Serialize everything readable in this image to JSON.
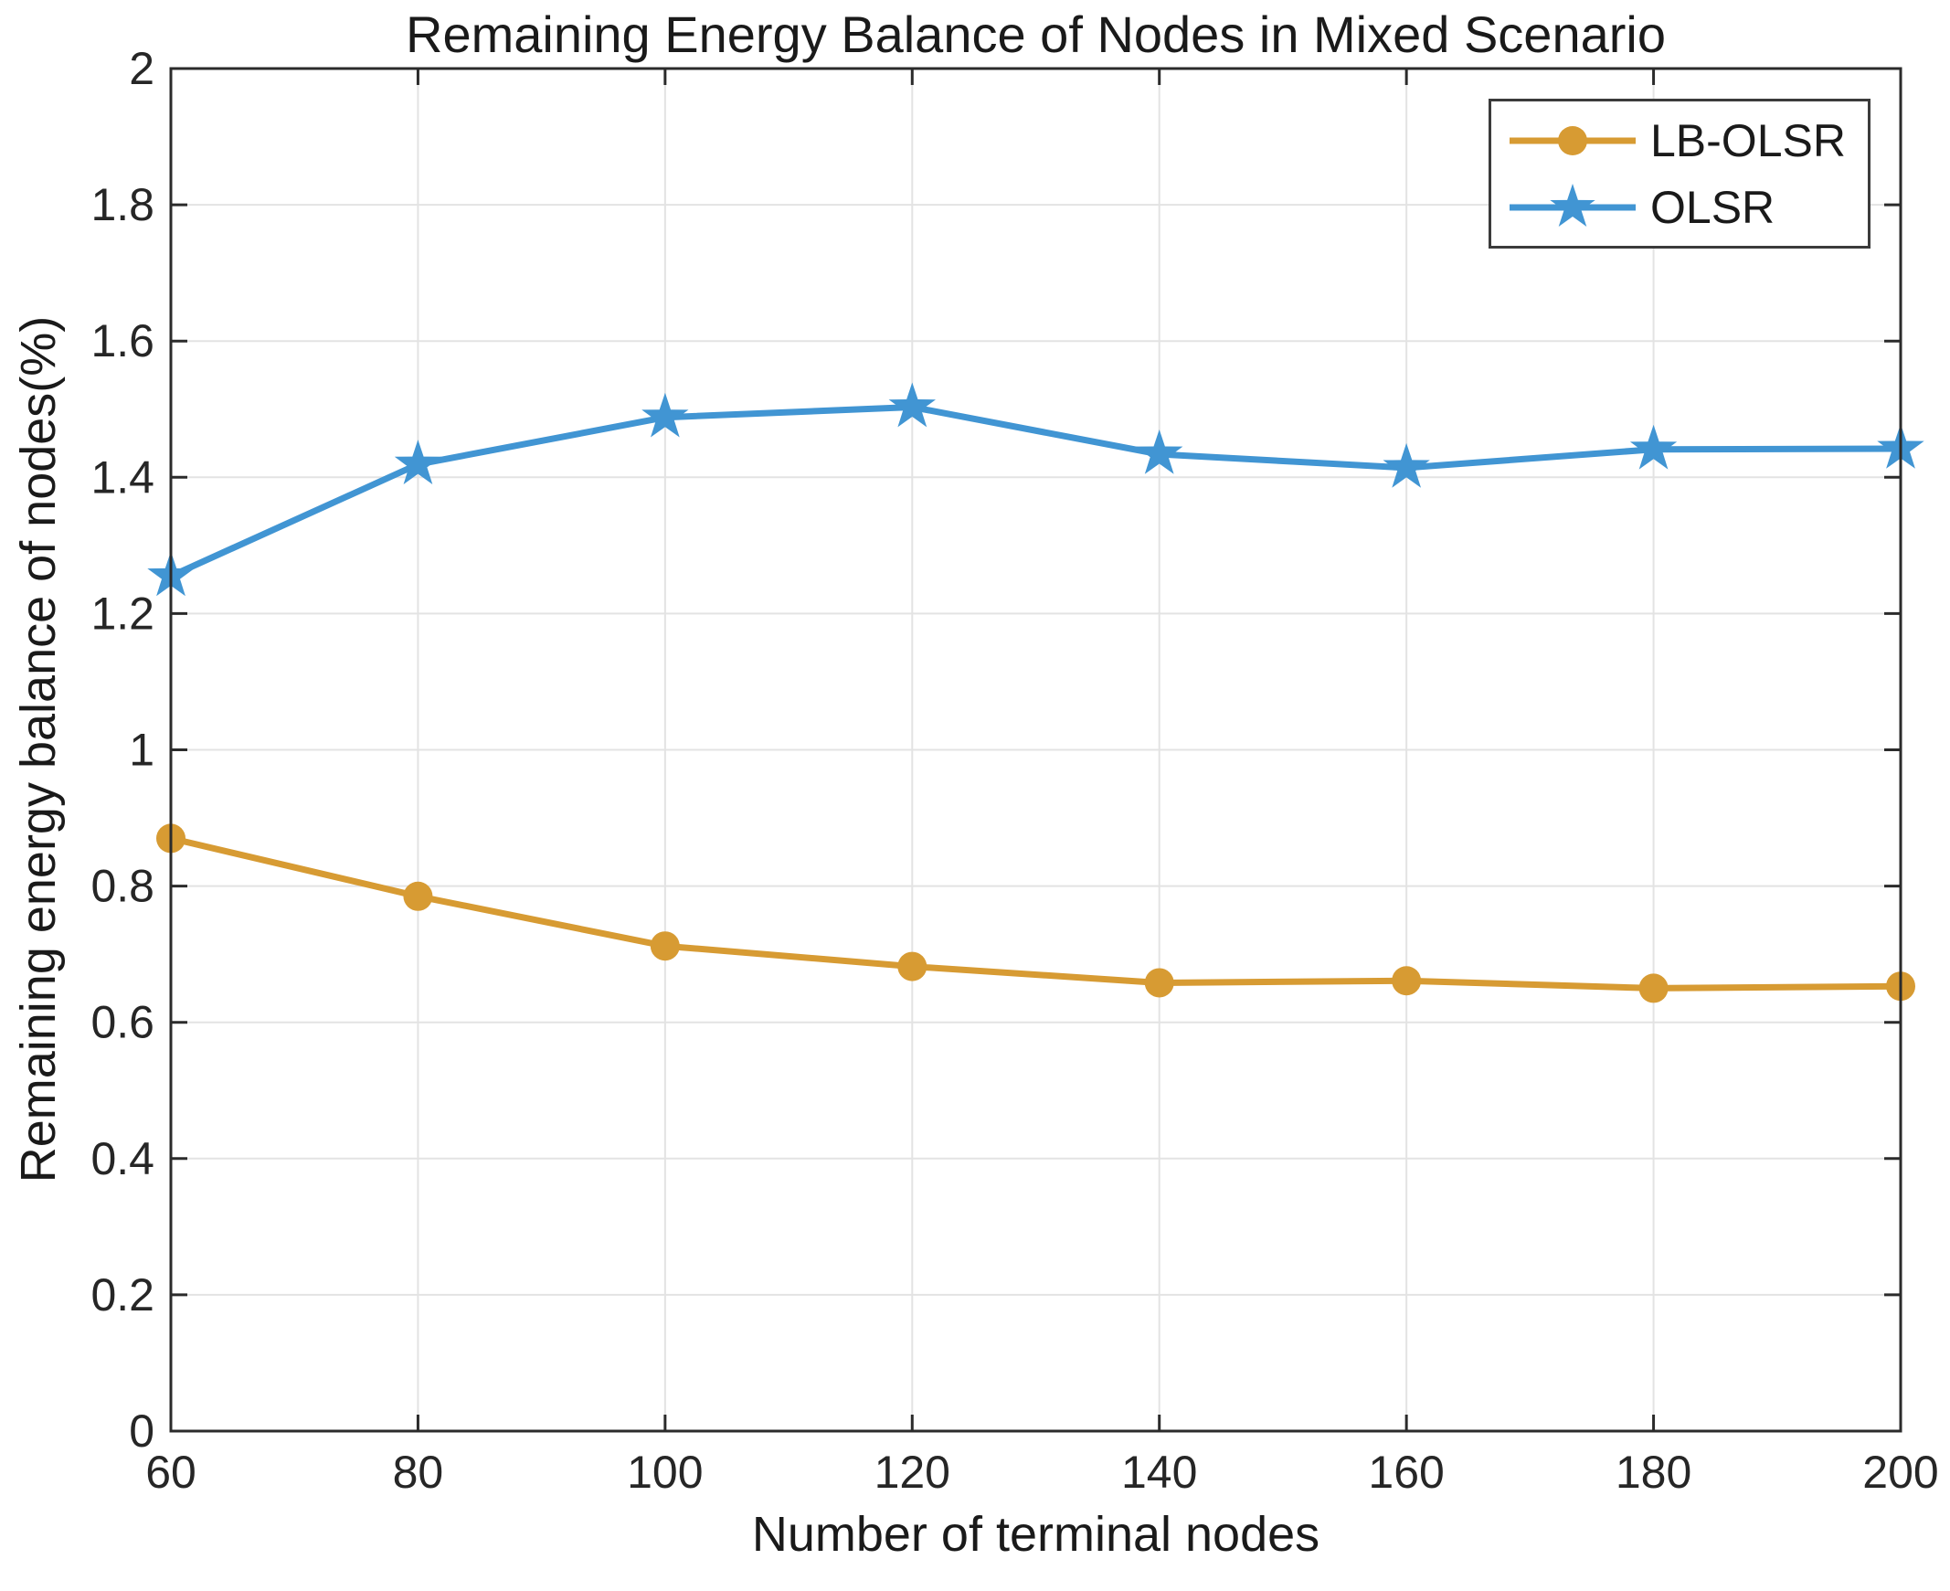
{
  "chart_data": {
    "type": "line",
    "title": "Remaining Energy Balance of Nodes in Mixed Scenario",
    "xlabel": "Number of terminal nodes",
    "ylabel": "Remaining energy balance of nodes(%)",
    "x": [
      60,
      80,
      100,
      120,
      140,
      160,
      180,
      200
    ],
    "series": [
      {
        "name": "LB-OLSR",
        "marker": "circle",
        "color": "#D79B33",
        "values": [
          0.87,
          0.785,
          0.712,
          0.682,
          0.658,
          0.661,
          0.65,
          0.653
        ]
      },
      {
        "name": "OLSR",
        "marker": "star",
        "color": "#4195D3",
        "values": [
          1.255,
          1.419,
          1.488,
          1.503,
          1.434,
          1.414,
          1.441,
          1.442
        ]
      }
    ],
    "xlim": [
      60,
      200
    ],
    "ylim": [
      0,
      2
    ],
    "xticks": [
      "60",
      "80",
      "100",
      "120",
      "140",
      "160",
      "180",
      "200"
    ],
    "yticks": [
      "0",
      "0.2",
      "0.4",
      "0.6",
      "0.8",
      "1",
      "1.2",
      "1.4",
      "1.6",
      "1.8",
      "2"
    ],
    "grid": true,
    "legend_position": "top-right"
  },
  "colors": {
    "grid": "#E3E3E3",
    "axis": "#2b2b2b",
    "tick_text": "#262626",
    "background": "#FFFFFF"
  }
}
